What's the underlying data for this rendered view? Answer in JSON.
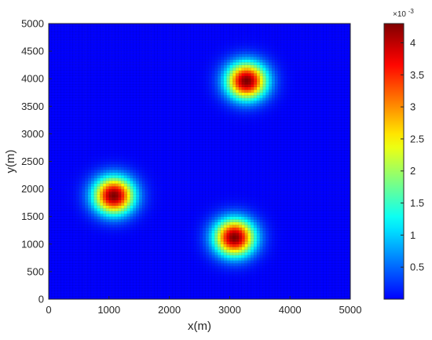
{
  "chart_data": {
    "type": "heatmap",
    "title": "",
    "xlabel": "x(m)",
    "ylabel": "y(m)",
    "xlim": [
      0,
      5000
    ],
    "ylim": [
      0,
      5000
    ],
    "grid_cells": 100,
    "x_ticks": [
      0,
      1000,
      2000,
      3000,
      4000,
      5000
    ],
    "y_ticks": [
      0,
      500,
      1000,
      1500,
      2000,
      2500,
      3000,
      3500,
      4000,
      4500,
      5000
    ],
    "colormap": "jet",
    "colorbar": {
      "min": 0,
      "max": 0.0043,
      "ticks": [
        0.5,
        1,
        1.5,
        2,
        2.5,
        3,
        3.5,
        4
      ],
      "exponent_label": "×10",
      "exponent_power": "-3"
    },
    "peaks": [
      {
        "x": 1080,
        "y": 1880,
        "value": 0.0043,
        "spread": 230
      },
      {
        "x": 3280,
        "y": 3960,
        "value": 0.0043,
        "spread": 230
      },
      {
        "x": 3080,
        "y": 1120,
        "value": 0.0043,
        "spread": 230
      }
    ]
  }
}
